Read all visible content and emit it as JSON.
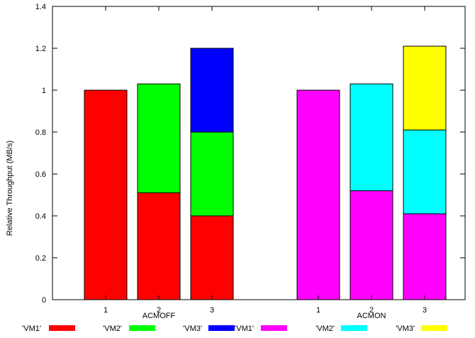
{
  "chart_data": {
    "type": "bar",
    "stacked": true,
    "ylabel": "Relative Throughput (MB/s)",
    "ylim": [
      0,
      1.4
    ],
    "yticks": [
      "0",
      "0.2",
      "0.4",
      "0.6",
      "0.8",
      "1",
      "1.2",
      "1.4"
    ],
    "grid": false,
    "legend_position": "bottom",
    "groups": [
      {
        "label": "ACMOFF",
        "categories": [
          "1",
          "2",
          "3"
        ],
        "series": [
          {
            "name": "'VM1'",
            "color": "#ff0000",
            "values": [
              1.0,
              0.51,
              0.4
            ]
          },
          {
            "name": "'VM2'",
            "color": "#00ff00",
            "values": [
              0,
              0.52,
              0.4
            ]
          },
          {
            "name": "'VM3'",
            "color": "#0000ff",
            "values": [
              0,
              0,
              0.4
            ]
          }
        ]
      },
      {
        "label": "ACMON",
        "categories": [
          "1",
          "2",
          "3"
        ],
        "series": [
          {
            "name": "'VM1'",
            "color": "#ff00ff",
            "values": [
              1.0,
              0.52,
              0.41
            ]
          },
          {
            "name": "'VM2'",
            "color": "#00ffff",
            "values": [
              0,
              0.51,
              0.4
            ]
          },
          {
            "name": "'VM3'",
            "color": "#ffff00",
            "values": [
              0,
              0,
              0.4
            ]
          }
        ]
      }
    ]
  }
}
